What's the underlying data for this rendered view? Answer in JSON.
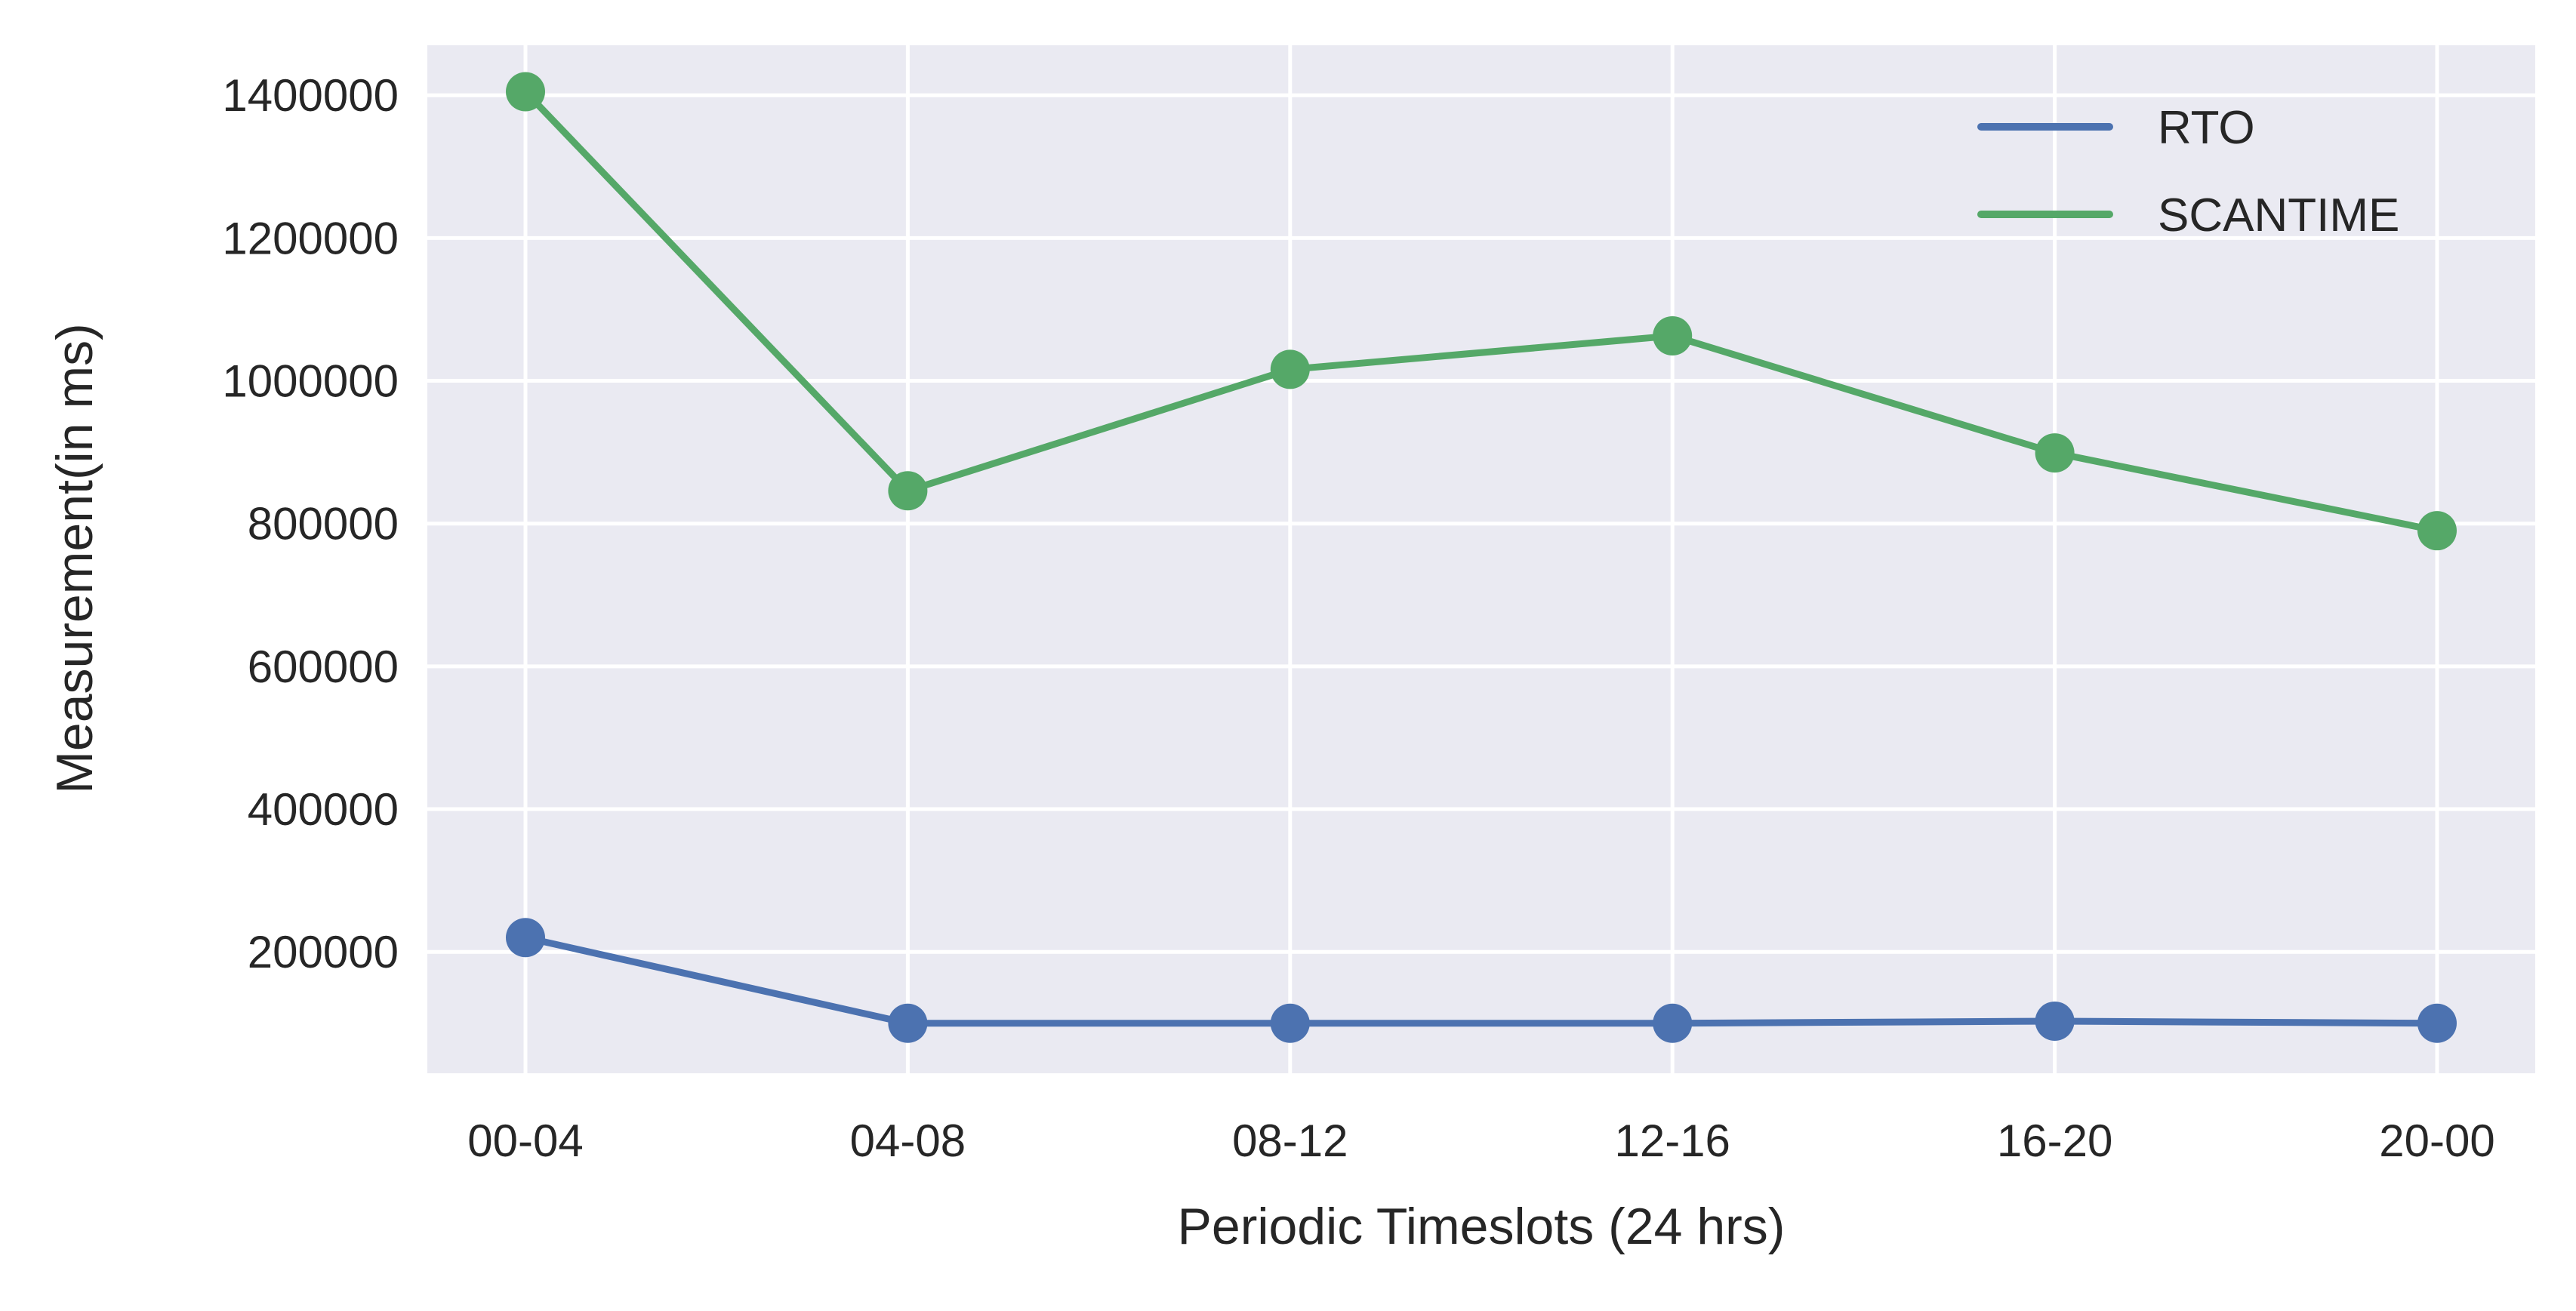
{
  "chart_data": {
    "type": "line",
    "title": "",
    "xlabel": "Periodic Timeslots (24 hrs)",
    "ylabel": "Measurement(in ms)",
    "categories": [
      "00-04",
      "04-08",
      "08-12",
      "12-16",
      "16-20",
      "20-00"
    ],
    "yticks": [
      "200000",
      "400000",
      "600000",
      "800000",
      "1000000",
      "1200000",
      "1400000"
    ],
    "ylim": [
      30000,
      1470000
    ],
    "grid": true,
    "legend_position": "top-right",
    "series": [
      {
        "name": "RTO",
        "color": "#4c72b0",
        "values": [
          220000,
          100000,
          100000,
          100000,
          103000,
          100000
        ]
      },
      {
        "name": "SCANTIME",
        "color": "#55a868",
        "values": [
          1405000,
          846000,
          1016000,
          1063000,
          899000,
          790000
        ]
      }
    ]
  }
}
